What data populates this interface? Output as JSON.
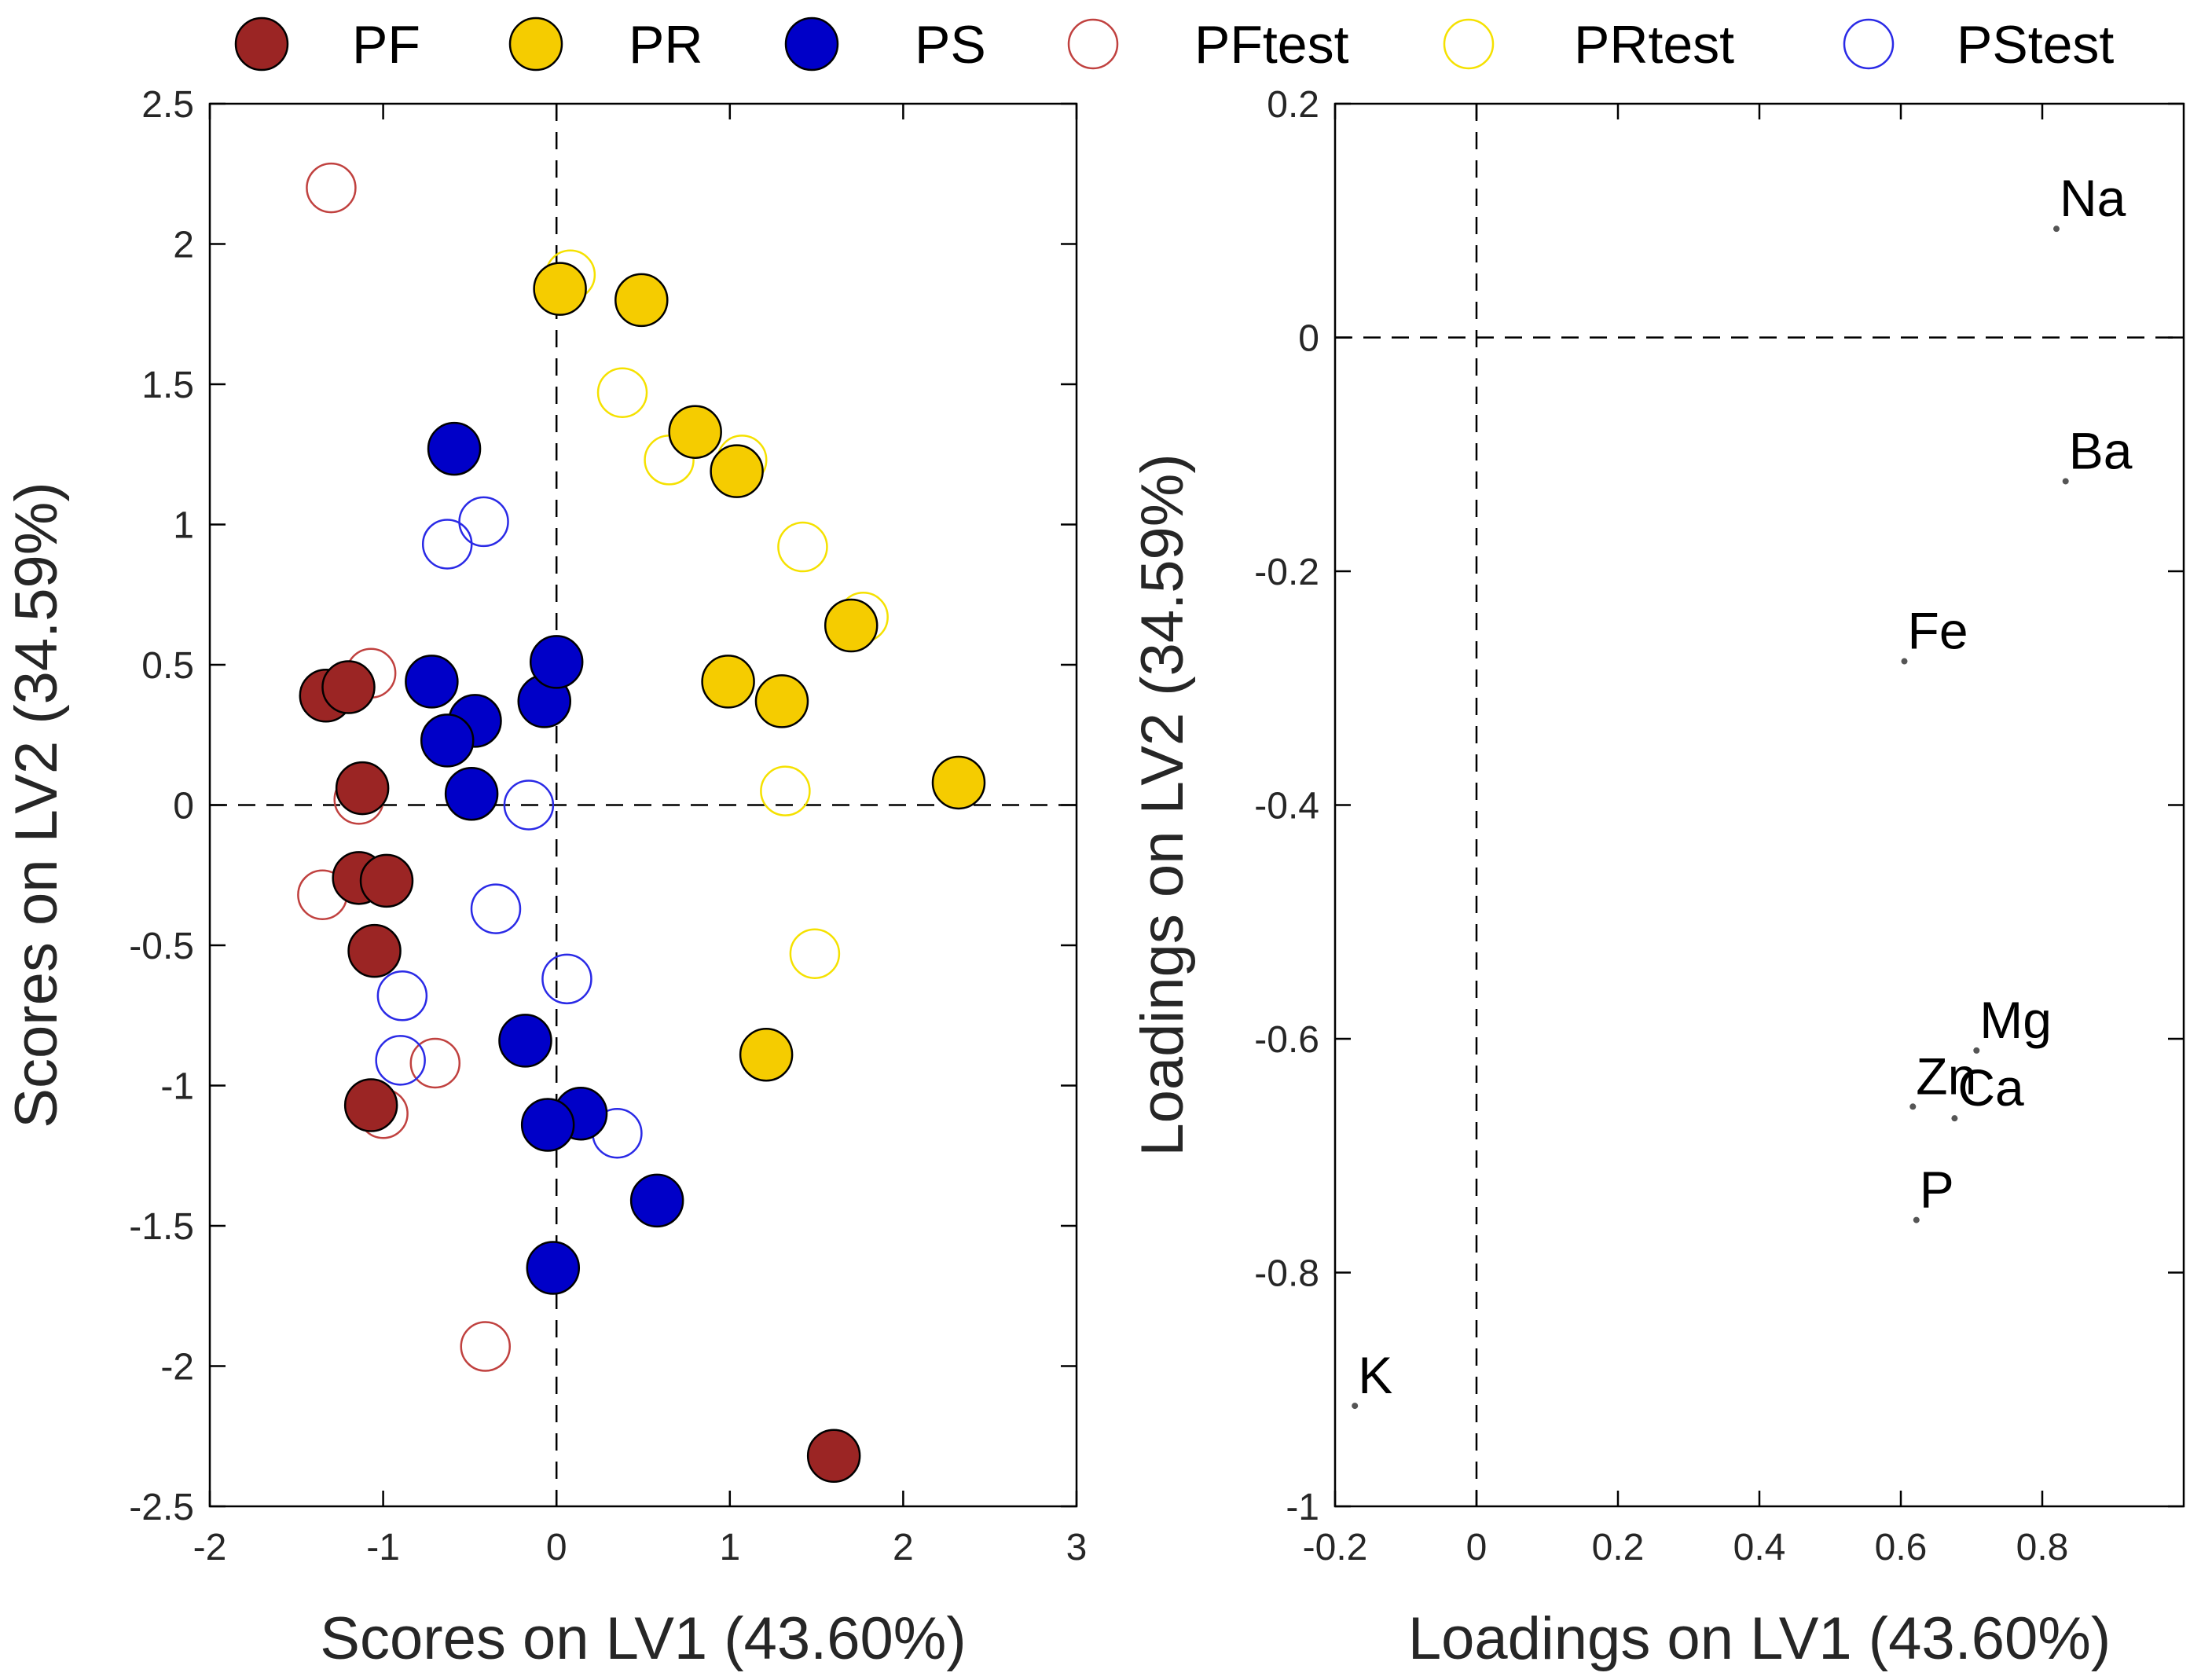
{
  "colors": {
    "PF": "#9b2524",
    "PR": "#f5cc00",
    "PS": "#0000c8",
    "PFtest": "#c0413f",
    "PRtest": "#f5e100",
    "PStest": "#2a2ae6",
    "axis": "#000000"
  },
  "chart_data": [
    {
      "type": "scatter",
      "xlabel": "Scores on LV1 (43.60%)",
      "ylabel": "Scores on LV2 (34.59%)",
      "xlim": [
        -2,
        3
      ],
      "ylim": [
        -2.5,
        2.5
      ],
      "xticks": [
        -2,
        -1,
        0,
        1,
        2,
        3
      ],
      "yticks": [
        -2.5,
        -2,
        -1.5,
        -1,
        -0.5,
        0,
        0.5,
        1,
        1.5,
        2,
        2.5
      ],
      "xtick_labels": [
        "-2",
        "-1",
        "0",
        "1",
        "2",
        "3"
      ],
      "ytick_labels": [
        "-2.5",
        "-2",
        "-1.5",
        "-1",
        "-0.5",
        "0",
        "0.5",
        "1",
        "1.5",
        "2",
        "2.5"
      ],
      "reference_lines": {
        "x": 0,
        "y": 0
      },
      "legend": {
        "position": "top",
        "entries": [
          {
            "name": "PF",
            "marker": "filled"
          },
          {
            "name": "PR",
            "marker": "filled"
          },
          {
            "name": "PS",
            "marker": "filled"
          },
          {
            "name": "PFtest",
            "marker": "open"
          },
          {
            "name": "PRtest",
            "marker": "open"
          },
          {
            "name": "PStest",
            "marker": "open"
          }
        ]
      },
      "series": [
        {
          "name": "PF",
          "marker": "filled",
          "points": [
            [
              -1.33,
              0.39
            ],
            [
              -1.2,
              0.42
            ],
            [
              -1.12,
              0.06
            ],
            [
              -1.14,
              -0.26
            ],
            [
              -0.98,
              -0.27
            ],
            [
              -1.05,
              -0.52
            ],
            [
              -1.07,
              -1.07
            ],
            [
              1.6,
              -2.32
            ]
          ]
        },
        {
          "name": "PR",
          "marker": "filled",
          "points": [
            [
              0.02,
              1.84
            ],
            [
              0.49,
              1.8
            ],
            [
              0.8,
              1.33
            ],
            [
              1.04,
              1.19
            ],
            [
              1.7,
              0.64
            ],
            [
              0.99,
              0.44
            ],
            [
              1.3,
              0.37
            ],
            [
              2.32,
              0.08
            ],
            [
              1.21,
              -0.89
            ]
          ]
        },
        {
          "name": "PS",
          "marker": "filled",
          "points": [
            [
              -0.59,
              1.27
            ],
            [
              -0.72,
              0.44
            ],
            [
              -0.47,
              0.3
            ],
            [
              -0.63,
              0.23
            ],
            [
              -0.07,
              0.37
            ],
            [
              0.0,
              0.51
            ],
            [
              -0.49,
              0.04
            ],
            [
              -0.18,
              -0.84
            ],
            [
              0.14,
              -1.1
            ],
            [
              -0.05,
              -1.14
            ],
            [
              0.58,
              -1.41
            ],
            [
              -0.02,
              -1.65
            ]
          ]
        },
        {
          "name": "PFtest",
          "marker": "open",
          "points": [
            [
              -1.3,
              2.2
            ],
            [
              -1.07,
              0.47
            ],
            [
              -1.14,
              0.02
            ],
            [
              -1.35,
              -0.32
            ],
            [
              -0.7,
              -0.92
            ],
            [
              -1.0,
              -1.1
            ],
            [
              -0.41,
              -1.93
            ]
          ]
        },
        {
          "name": "PRtest",
          "marker": "open",
          "points": [
            [
              0.08,
              1.89
            ],
            [
              0.38,
              1.47
            ],
            [
              0.65,
              1.23
            ],
            [
              1.07,
              1.23
            ],
            [
              1.42,
              0.92
            ],
            [
              1.77,
              0.67
            ],
            [
              1.32,
              0.05
            ],
            [
              1.49,
              -0.53
            ]
          ]
        },
        {
          "name": "PStest",
          "marker": "open",
          "points": [
            [
              -0.42,
              1.01
            ],
            [
              -0.63,
              0.93
            ],
            [
              -0.16,
              0.0
            ],
            [
              -0.35,
              -0.37
            ],
            [
              0.06,
              -0.62
            ],
            [
              -0.89,
              -0.68
            ],
            [
              -0.9,
              -0.91
            ],
            [
              0.35,
              -1.17
            ]
          ]
        }
      ]
    },
    {
      "type": "scatter",
      "xlabel": "Loadings on LV1 (43.60%)",
      "ylabel": "Loadings on LV2 (34.59%)",
      "xlim": [
        -0.2,
        1.0
      ],
      "ylim": [
        -1,
        0.2
      ],
      "xticks": [
        -0.2,
        0,
        0.2,
        0.4,
        0.6,
        0.8
      ],
      "yticks": [
        -1,
        -0.8,
        -0.6,
        -0.4,
        -0.2,
        0,
        0.2
      ],
      "xtick_labels": [
        "-0.2",
        "0",
        "0.2",
        "0.4",
        "0.6",
        "0.8"
      ],
      "ytick_labels": [
        "-1",
        "-0.8",
        "-0.6",
        "-0.4",
        "-0.2",
        "0",
        "0.2"
      ],
      "reference_lines": {
        "x": 0,
        "y": 0
      },
      "variables": [
        {
          "label": "Na",
          "x": 0.82,
          "y": 0.093
        },
        {
          "label": "Ba",
          "x": 0.833,
          "y": -0.123
        },
        {
          "label": "Fe",
          "x": 0.605,
          "y": -0.277
        },
        {
          "label": "Mg",
          "x": 0.707,
          "y": -0.61
        },
        {
          "label": "Zn",
          "x": 0.617,
          "y": -0.658
        },
        {
          "label": "Ca",
          "x": 0.676,
          "y": -0.668
        },
        {
          "label": "P",
          "x": 0.622,
          "y": -0.755
        },
        {
          "label": "K",
          "x": -0.172,
          "y": -0.914
        }
      ]
    }
  ]
}
